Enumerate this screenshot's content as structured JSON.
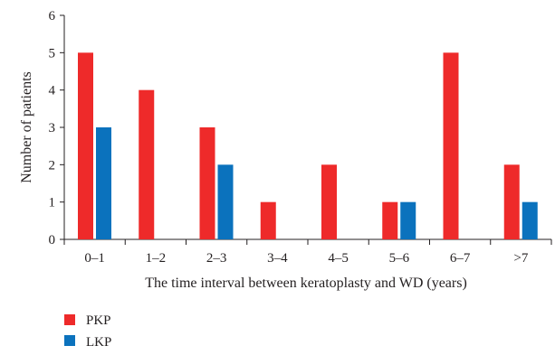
{
  "chart_data": {
    "type": "bar",
    "categories": [
      "0–1",
      "1–2",
      "2–3",
      "3–4",
      "4–5",
      "5–6",
      "6–7",
      ">7"
    ],
    "series": [
      {
        "name": "PKP",
        "values": [
          5,
          4,
          3,
          1,
          2,
          1,
          5,
          2
        ]
      },
      {
        "name": "LKP",
        "values": [
          3,
          0,
          2,
          0,
          0,
          1,
          0,
          1
        ]
      }
    ],
    "xlabel": "The time interval between keratoplasty and WD (years)",
    "ylabel": "Number of patients",
    "ylim": [
      0,
      6
    ],
    "yticks": [
      "0",
      "1",
      "2",
      "3",
      "4",
      "5",
      "6"
    ],
    "grid": false,
    "legend_position": "bottom-left",
    "colors": {
      "PKP": "#ee2a2a",
      "LKP": "#0b72bd",
      "axis": "#231f20"
    }
  }
}
